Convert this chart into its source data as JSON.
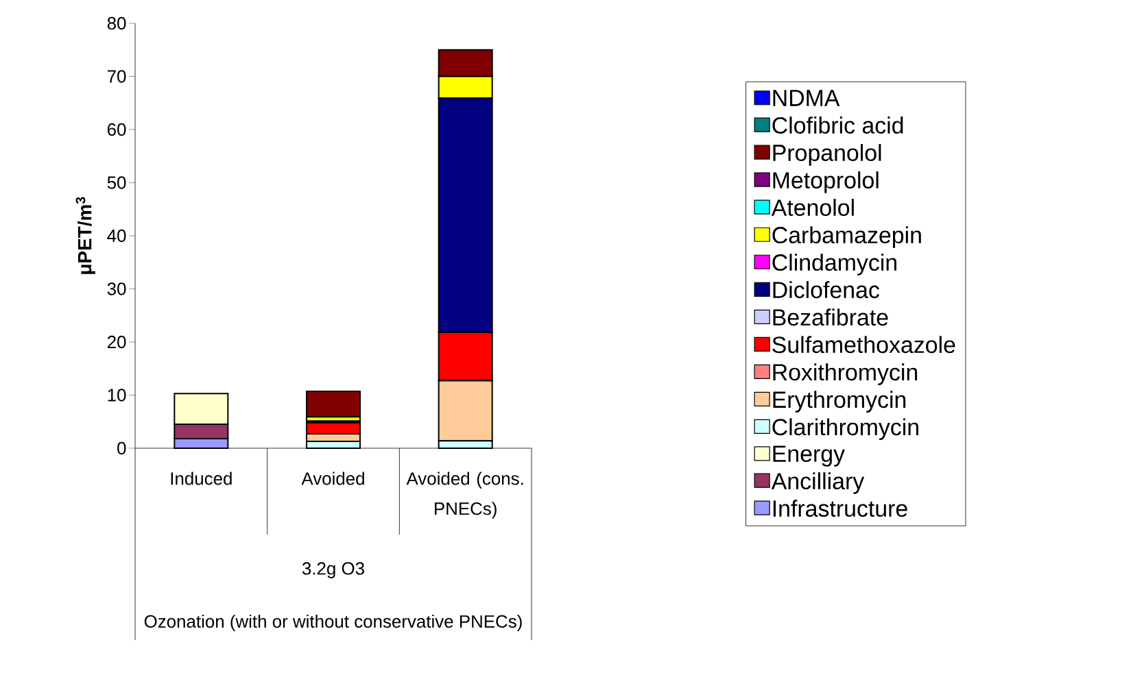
{
  "chart_data": {
    "type": "bar",
    "stacked": true,
    "ylabel": "μPET/m$^{3}$",
    "categories": [
      "Induced",
      "Avoided",
      "Avoided (cons. PNECs)"
    ],
    "annotations": [
      "3.2g O3",
      "Ozonation (with or without conservative PNECs)"
    ],
    "ylim": [
      0,
      80
    ],
    "yticks": [
      0,
      10,
      20,
      30,
      40,
      50,
      60,
      70,
      80
    ],
    "grid": false,
    "legend": "right",
    "series": [
      {
        "name": "Infrastructure",
        "color": "#9999ff",
        "values": [
          1.8,
          0,
          0
        ]
      },
      {
        "name": "Ancilliary",
        "color": "#993366",
        "values": [
          2.7,
          0,
          0
        ]
      },
      {
        "name": "Energy",
        "color": "#ffffcc",
        "values": [
          5.8,
          0,
          0
        ]
      },
      {
        "name": "Clarithromycin",
        "color": "#ccffff",
        "values": [
          0,
          1.3,
          1.4
        ]
      },
      {
        "name": "Erythromycin",
        "color": "#ffcc99",
        "values": [
          0,
          1.4,
          11.3
        ]
      },
      {
        "name": "Roxithromycin",
        "color": "#ff8080",
        "values": [
          0,
          0,
          0
        ]
      },
      {
        "name": "Sulfamethoxazole",
        "color": "#ff0000",
        "values": [
          0,
          2.1,
          9.1
        ]
      },
      {
        "name": "Bezafibrate",
        "color": "#ccccff",
        "values": [
          0,
          0,
          0
        ]
      },
      {
        "name": "Diclofenac",
        "color": "#000080",
        "values": [
          0,
          0.3,
          44.1
        ]
      },
      {
        "name": "Clindamycin",
        "color": "#ff00ff",
        "values": [
          0,
          0,
          0
        ]
      },
      {
        "name": "Carbamazepin",
        "color": "#ffff00",
        "values": [
          0,
          0.8,
          4.1
        ]
      },
      {
        "name": "Atenolol",
        "color": "#00ffff",
        "values": [
          0,
          0,
          0
        ]
      },
      {
        "name": "Metoprolol",
        "color": "#800080",
        "values": [
          0,
          0,
          0
        ]
      },
      {
        "name": "Propanolol",
        "color": "#800000",
        "values": [
          0,
          4.8,
          5.0
        ]
      },
      {
        "name": "Clofibric acid",
        "color": "#008080",
        "values": [
          0,
          0,
          0
        ]
      },
      {
        "name": "NDMA",
        "color": "#0000ff",
        "values": [
          0,
          0,
          0
        ]
      }
    ]
  }
}
